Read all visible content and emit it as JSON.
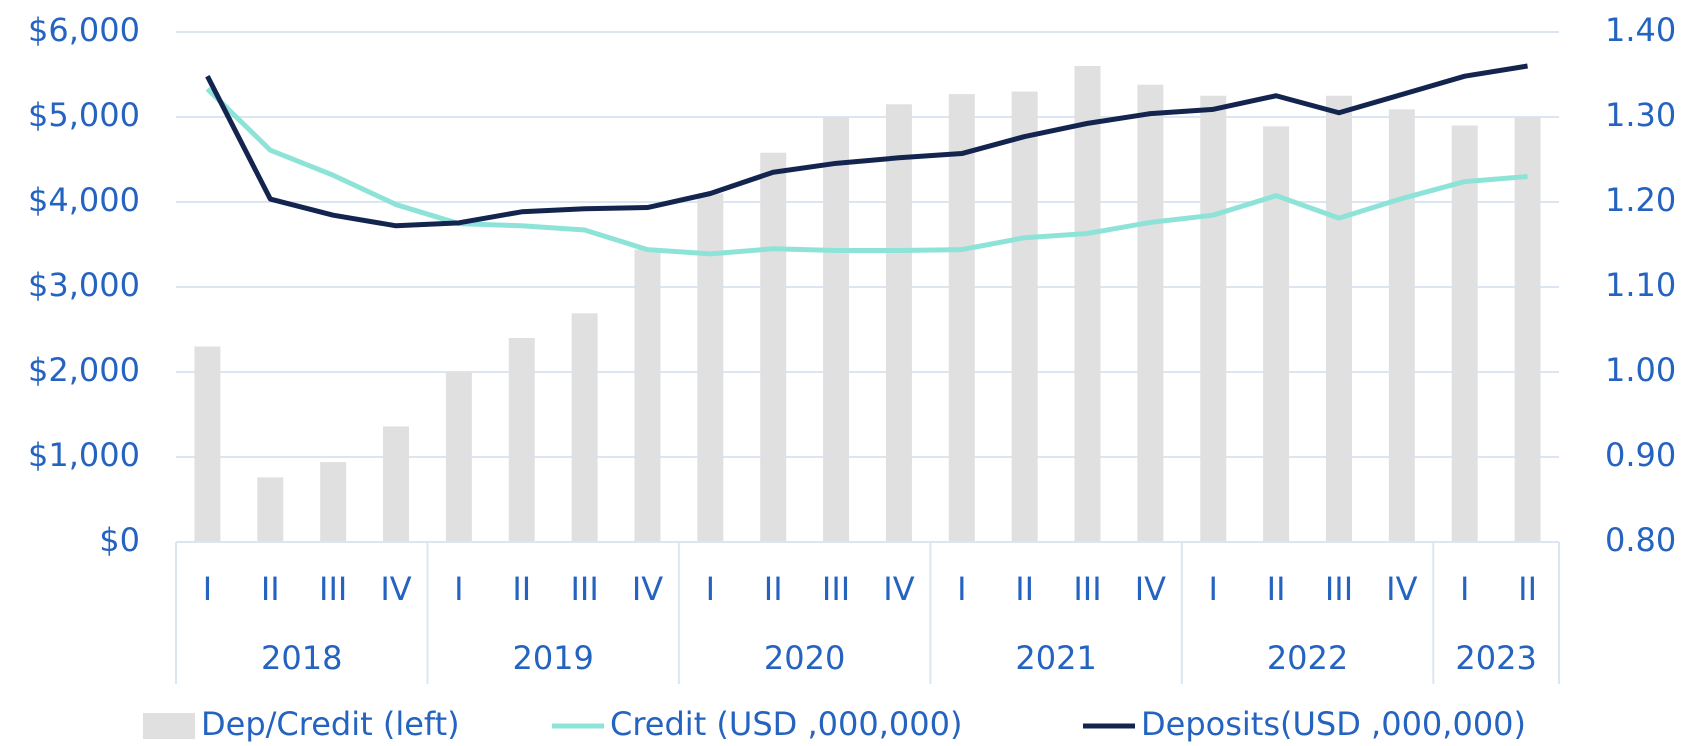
{
  "chart_data": {
    "type": "combo",
    "categories": [
      "I",
      "II",
      "III",
      "IV",
      "I",
      "II",
      "III",
      "IV",
      "I",
      "II",
      "III",
      "IV",
      "I",
      "II",
      "III",
      "IV",
      "I",
      "II",
      "III",
      "IV",
      "I",
      "II"
    ],
    "groups": [
      {
        "label": "2018",
        "count": 4
      },
      {
        "label": "2019",
        "count": 4
      },
      {
        "label": "2020",
        "count": 4
      },
      {
        "label": "2021",
        "count": 4
      },
      {
        "label": "2022",
        "count": 4
      },
      {
        "label": "2023",
        "count": 2
      }
    ],
    "series": [
      {
        "name": "Dep/Credit (left)",
        "type": "bar",
        "axis": "y2",
        "color": "#e0e0e0",
        "values": [
          1.03,
          0.876,
          0.894,
          0.936,
          1.0,
          1.04,
          1.069,
          1.144,
          1.21,
          1.258,
          1.3,
          1.315,
          1.327,
          1.33,
          1.36,
          1.338,
          1.325,
          1.289,
          1.325,
          1.309,
          1.29,
          1.3
        ]
      },
      {
        "name": "Credit  (USD ,000,000)",
        "type": "line",
        "color": "#8ee3d9",
        "values": [
          5330,
          4610,
          4315,
          3970,
          3745,
          3720,
          3670,
          3440,
          3390,
          3450,
          3430,
          3430,
          3440,
          3580,
          3630,
          3760,
          3845,
          4075,
          3810,
          4040,
          4240,
          4300
        ]
      },
      {
        "name": "Deposits(USD ,000,000)",
        "type": "line",
        "color": "#13254f",
        "values": [
          5480,
          4035,
          3845,
          3720,
          3755,
          3885,
          3920,
          3935,
          4100,
          4350,
          4455,
          4520,
          4570,
          4770,
          4925,
          5040,
          5090,
          5250,
          5050,
          5265,
          5480,
          5600
        ]
      }
    ],
    "ylim": [
      0,
      6000
    ],
    "yticks": [
      {
        "value": 0,
        "label": "$0"
      },
      {
        "value": 1000,
        "label": "$1,000"
      },
      {
        "value": 2000,
        "label": "$2,000"
      },
      {
        "value": 3000,
        "label": "$3,000"
      },
      {
        "value": 4000,
        "label": "$4,000"
      },
      {
        "value": 5000,
        "label": "$5,000"
      },
      {
        "value": 6000,
        "label": "$6,000"
      }
    ],
    "y2lim": [
      0.8,
      1.4
    ],
    "y2ticks": [
      {
        "value": 0.8,
        "label": "0.80"
      },
      {
        "value": 0.9,
        "label": "0.90"
      },
      {
        "value": 1.0,
        "label": "1.00"
      },
      {
        "value": 1.1,
        "label": "1.10"
      },
      {
        "value": 1.2,
        "label": "1.20"
      },
      {
        "value": 1.3,
        "label": "1.30"
      },
      {
        "value": 1.4,
        "label": "1.40"
      }
    ],
    "grid": true
  }
}
